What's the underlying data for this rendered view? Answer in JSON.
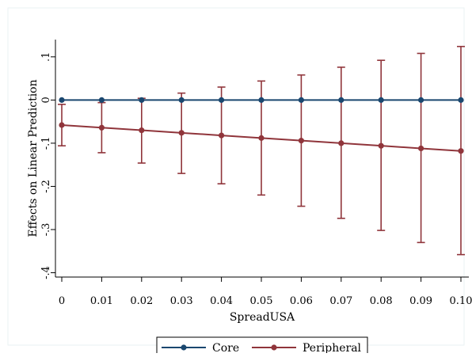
{
  "chart_data": {
    "type": "line",
    "xlabel": "SpreadUSA",
    "ylabel": "Effects on Linear Prediction",
    "x": [
      0,
      0.01,
      0.02,
      0.03,
      0.04,
      0.05,
      0.06,
      0.07,
      0.08,
      0.09,
      0.1
    ],
    "x_tick_labels": [
      "0",
      "0.01",
      "0.02",
      "0.03",
      "0.04",
      "0.05",
      "0.06",
      "0.07",
      "0.08",
      "0.09",
      "0.10"
    ],
    "y_ticks": [
      -0.4,
      -0.3,
      -0.2,
      -0.1,
      0,
      0.1
    ],
    "y_tick_labels": [
      "-.4",
      "-.3",
      "-.2",
      "-.1",
      "0",
      ".1"
    ],
    "xlim": [
      0,
      0.1
    ],
    "ylim": [
      -0.41,
      0.14
    ],
    "grid": false,
    "legend_position": "bottom",
    "series": [
      {
        "name": "Core",
        "color": "#1a476f",
        "marker": "circle",
        "values": [
          0,
          0,
          0,
          0,
          0,
          0,
          0,
          0,
          0,
          0,
          0
        ],
        "ci_low": [
          0,
          0,
          0,
          0,
          0,
          0,
          0,
          0,
          0,
          0,
          0
        ],
        "ci_high": [
          0,
          0,
          0,
          0,
          0,
          0,
          0,
          0,
          0,
          0,
          0
        ]
      },
      {
        "name": "Peripheral",
        "color": "#90353b",
        "marker": "circle",
        "values": [
          -0.058,
          -0.064,
          -0.07,
          -0.076,
          -0.082,
          -0.088,
          -0.094,
          -0.1,
          -0.106,
          -0.112,
          -0.118
        ],
        "ci_low": [
          -0.106,
          -0.122,
          -0.146,
          -0.17,
          -0.194,
          -0.22,
          -0.246,
          -0.274,
          -0.302,
          -0.33,
          -0.358
        ],
        "ci_high": [
          -0.01,
          -0.006,
          0.004,
          0.016,
          0.03,
          0.044,
          0.058,
          0.076,
          0.092,
          0.108,
          0.124
        ]
      }
    ]
  }
}
